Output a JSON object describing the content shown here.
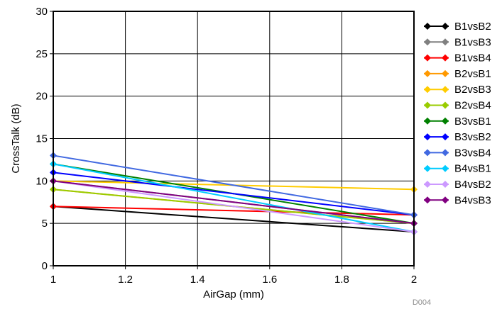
{
  "chart_data": {
    "type": "line",
    "xlabel": "AirGap (mm)",
    "ylabel": "CrossTalk (dB)",
    "figure_id": "D004",
    "xlim": [
      1,
      2
    ],
    "ylim": [
      0,
      30
    ],
    "x_ticks": [
      1,
      1.2,
      1.4,
      1.6,
      1.8,
      2
    ],
    "x_tick_labels": [
      "1",
      "1.2",
      "1.4",
      "1.6",
      "1.8",
      "2"
    ],
    "y_ticks": [
      0,
      5,
      10,
      15,
      20,
      25,
      30
    ],
    "y_tick_labels": [
      "0",
      "5",
      "10",
      "15",
      "20",
      "25",
      "30"
    ],
    "grid": true,
    "legend_position": "right",
    "x": [
      1,
      2
    ],
    "series": [
      {
        "name": "B1vsB2",
        "color": "#000000",
        "values": [
          7,
          4
        ]
      },
      {
        "name": "B1vsB3",
        "color": "#808080",
        "values": [
          10,
          5
        ]
      },
      {
        "name": "B1vsB4",
        "color": "#ff0000",
        "values": [
          7,
          6
        ]
      },
      {
        "name": "B2vsB1",
        "color": "#ff9900",
        "values": [
          9,
          5
        ]
      },
      {
        "name": "B2vsB3",
        "color": "#ffcc00",
        "values": [
          10,
          9
        ]
      },
      {
        "name": "B2vsB4",
        "color": "#99cc00",
        "values": [
          9,
          5
        ]
      },
      {
        "name": "B3vsB1",
        "color": "#008000",
        "values": [
          12,
          5
        ]
      },
      {
        "name": "B3vsB2",
        "color": "#0000ff",
        "values": [
          11,
          6
        ]
      },
      {
        "name": "B3vsB4",
        "color": "#4169e1",
        "values": [
          13,
          6
        ]
      },
      {
        "name": "B4vsB1",
        "color": "#00ccff",
        "values": [
          12,
          4
        ]
      },
      {
        "name": "B4vsB2",
        "color": "#cc99ff",
        "values": [
          10,
          4
        ]
      },
      {
        "name": "B4vsB3",
        "color": "#800080",
        "values": [
          10,
          5
        ]
      }
    ]
  }
}
